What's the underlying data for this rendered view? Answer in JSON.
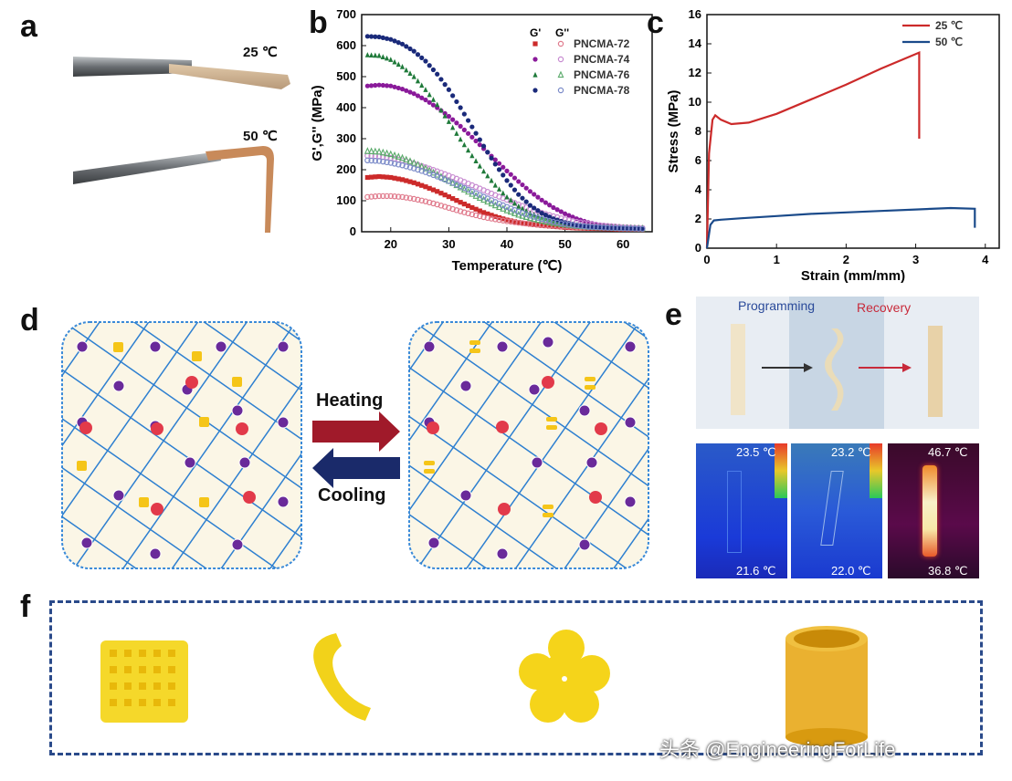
{
  "labels": {
    "a": "a",
    "b": "b",
    "c": "c",
    "d": "d",
    "e": "e",
    "f": "f"
  },
  "panel_a": {
    "temp_top": "25 ℃",
    "temp_bottom": "50 ℃"
  },
  "panel_d": {
    "heating": "Heating",
    "cooling": "Cooling"
  },
  "panel_e": {
    "programming": "Programming",
    "recovery": "Recovery",
    "ir1_top": "23.5 ℃",
    "ir1_bottom": "21.6 ℃",
    "ir2_top": "23.2 ℃",
    "ir2_bottom": "22.0 ℃",
    "ir3_top": "46.7 ℃",
    "ir3_bottom": "36.8 ℃"
  },
  "watermark": "头条 @EngineeringForLife",
  "colors": {
    "red": "#cc2a2a",
    "pink": "#e07a8c",
    "magenta": "#8a1a9a",
    "green": "#1f7a3a",
    "navy": "#1a2a7a",
    "blue": "#2a5aa8",
    "net": "#2d7fd0",
    "gold": "#f5c518",
    "purple": "#6a2a9a"
  },
  "chart_data": [
    {
      "type": "scatter",
      "title": "",
      "xlabel": "Temperature (℃)",
      "ylabel": "G',G'' (MPa)",
      "xlim": [
        15,
        65
      ],
      "ylim": [
        0,
        700
      ],
      "xticks": [
        20,
        30,
        40,
        50,
        60
      ],
      "yticks": [
        0,
        100,
        200,
        300,
        400,
        500,
        600,
        700
      ],
      "legend_headers": [
        "G'",
        "G''"
      ],
      "series": [
        {
          "name": "PNCMA-72",
          "kind": "G'",
          "color": "#cc2a2a",
          "marker": "square",
          "x": [
            16,
            18,
            20,
            22,
            24,
            26,
            28,
            30,
            32,
            34,
            36,
            38,
            40,
            42,
            44,
            46,
            48,
            50,
            52,
            54,
            56,
            58,
            60,
            62,
            64
          ],
          "values": [
            175,
            178,
            175,
            168,
            158,
            145,
            130,
            113,
            95,
            78,
            62,
            49,
            38,
            30,
            24,
            20,
            17,
            14,
            12,
            11,
            10,
            9,
            8,
            8,
            7
          ]
        },
        {
          "name": "PNCMA-72",
          "kind": "G''",
          "color": "#e07a8c",
          "marker": "circle-open",
          "x": [
            16,
            18,
            20,
            22,
            24,
            26,
            28,
            30,
            32,
            34,
            36,
            38,
            40,
            42,
            44,
            46,
            48,
            50,
            52,
            54,
            56,
            58,
            60,
            62,
            64
          ],
          "values": [
            112,
            115,
            115,
            112,
            106,
            98,
            88,
            77,
            66,
            56,
            47,
            40,
            34,
            29,
            25,
            22,
            19,
            17,
            15,
            14,
            13,
            12,
            11,
            11,
            10
          ]
        },
        {
          "name": "PNCMA-74",
          "kind": "G'",
          "color": "#8a1a9a",
          "marker": "circle",
          "x": [
            16,
            18,
            20,
            22,
            24,
            26,
            28,
            30,
            32,
            34,
            36,
            38,
            40,
            42,
            44,
            46,
            48,
            50,
            52,
            54,
            56,
            58,
            60,
            62,
            64
          ],
          "values": [
            470,
            473,
            470,
            460,
            445,
            425,
            400,
            372,
            340,
            305,
            268,
            232,
            196,
            162,
            130,
            102,
            78,
            58,
            42,
            30,
            22,
            17,
            13,
            11,
            10
          ]
        },
        {
          "name": "PNCMA-74",
          "kind": "G''",
          "color": "#c78ad0",
          "marker": "circle-open",
          "x": [
            16,
            18,
            20,
            22,
            24,
            26,
            28,
            30,
            32,
            34,
            36,
            38,
            40,
            42,
            44,
            46,
            48,
            50,
            52,
            54,
            56,
            58,
            60,
            62,
            64
          ],
          "values": [
            245,
            243,
            238,
            230,
            220,
            208,
            195,
            181,
            166,
            150,
            134,
            118,
            103,
            88,
            74,
            61,
            50,
            40,
            32,
            26,
            21,
            18,
            15,
            13,
            12
          ]
        },
        {
          "name": "PNCMA-76",
          "kind": "G'",
          "color": "#1f7a3a",
          "marker": "triangle",
          "x": [
            16,
            18,
            20,
            22,
            24,
            26,
            28,
            30,
            32,
            34,
            36,
            38,
            40,
            42,
            44,
            46,
            48,
            50,
            52,
            54,
            56,
            58,
            60,
            62,
            64
          ],
          "values": [
            570,
            568,
            555,
            532,
            500,
            458,
            410,
            355,
            298,
            245,
            195,
            150,
            112,
            82,
            60,
            45,
            35,
            28,
            22,
            18,
            15,
            13,
            12,
            11,
            10
          ]
        },
        {
          "name": "PNCMA-76",
          "kind": "G''",
          "color": "#5aaa6a",
          "marker": "triangle-open",
          "x": [
            16,
            18,
            20,
            22,
            24,
            26,
            28,
            30,
            32,
            34,
            36,
            38,
            40,
            42,
            44,
            46,
            48,
            50,
            52,
            54,
            56,
            58,
            60,
            62,
            64
          ],
          "values": [
            260,
            258,
            250,
            238,
            222,
            204,
            184,
            164,
            143,
            122,
            103,
            85,
            69,
            55,
            44,
            35,
            28,
            23,
            19,
            16,
            14,
            13,
            12,
            11,
            10
          ]
        },
        {
          "name": "PNCMA-78",
          "kind": "G'",
          "color": "#1a2a7a",
          "marker": "circle",
          "x": [
            16,
            18,
            20,
            22,
            24,
            26,
            28,
            30,
            32,
            34,
            36,
            38,
            40,
            42,
            44,
            46,
            48,
            50,
            52,
            54,
            56,
            58,
            60,
            62,
            64
          ],
          "values": [
            630,
            628,
            620,
            605,
            582,
            550,
            508,
            458,
            400,
            338,
            276,
            218,
            165,
            120,
            85,
            60,
            42,
            30,
            22,
            17,
            14,
            12,
            11,
            10,
            9
          ]
        },
        {
          "name": "PNCMA-78",
          "kind": "G''",
          "color": "#7a8ac8",
          "marker": "circle-open",
          "x": [
            16,
            18,
            20,
            22,
            24,
            26,
            28,
            30,
            32,
            34,
            36,
            38,
            40,
            42,
            44,
            46,
            48,
            50,
            52,
            54,
            56,
            58,
            60,
            62,
            64
          ],
          "values": [
            230,
            228,
            222,
            214,
            204,
            192,
            178,
            163,
            147,
            130,
            113,
            96,
            80,
            65,
            52,
            41,
            32,
            25,
            20,
            16,
            14,
            12,
            11,
            10,
            9
          ]
        }
      ]
    },
    {
      "type": "line",
      "title": "",
      "xlabel": "Strain (mm/mm)",
      "ylabel": "Stress (MPa)",
      "xlim": [
        0,
        4.2
      ],
      "ylim": [
        0,
        16
      ],
      "xticks": [
        0,
        1,
        2,
        3,
        4
      ],
      "yticks": [
        0,
        2,
        4,
        6,
        8,
        10,
        12,
        14,
        16
      ],
      "series": [
        {
          "name": "25 ℃",
          "color": "#cc2a2a",
          "x": [
            0,
            0.03,
            0.08,
            0.12,
            0.2,
            0.35,
            0.6,
            1.0,
            1.5,
            2.0,
            2.5,
            3.05,
            3.05
          ],
          "values": [
            0,
            6.5,
            8.8,
            9.1,
            8.8,
            8.5,
            8.6,
            9.2,
            10.2,
            11.2,
            12.3,
            13.4,
            7.5
          ]
        },
        {
          "name": "50 ℃",
          "color": "#1a4a8a",
          "x": [
            0,
            0.05,
            0.1,
            0.2,
            0.5,
            1.0,
            1.5,
            2.0,
            2.5,
            3.0,
            3.5,
            3.85,
            3.85
          ],
          "values": [
            0,
            1.6,
            1.9,
            1.95,
            2.05,
            2.2,
            2.35,
            2.45,
            2.55,
            2.65,
            2.75,
            2.7,
            1.4
          ]
        }
      ]
    }
  ]
}
